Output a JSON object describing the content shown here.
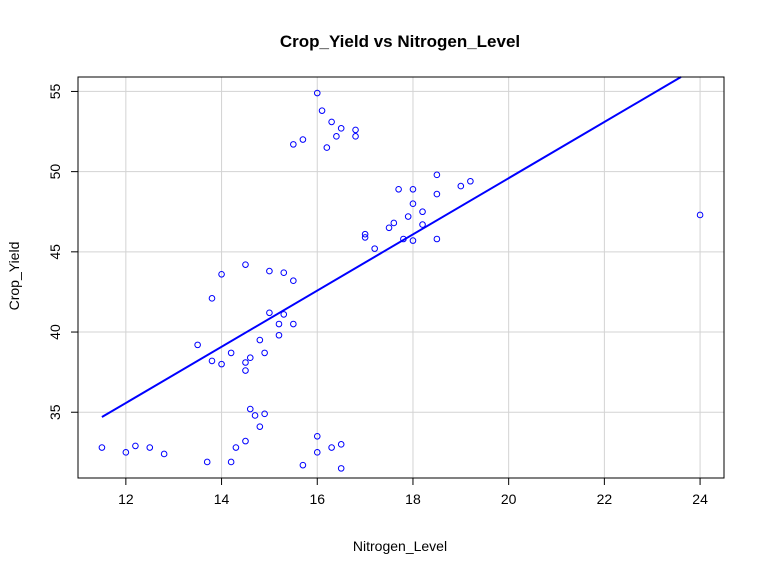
{
  "chart_data": {
    "type": "scatter",
    "title": "Crop_Yield vs Nitrogen_Level",
    "xlabel": "Nitrogen_Level",
    "ylabel": "Crop_Yield",
    "xlim": [
      11.0,
      24.5
    ],
    "ylim": [
      30.9,
      55.9
    ],
    "xticks": [
      12,
      14,
      16,
      18,
      20,
      22,
      24
    ],
    "yticks": [
      35,
      40,
      45,
      50,
      55
    ],
    "grid": true,
    "point_color": "#0000ff",
    "line_color": "#0000ff",
    "points": [
      [
        11.5,
        32.8
      ],
      [
        12.0,
        32.5
      ],
      [
        12.2,
        32.9
      ],
      [
        12.5,
        32.8
      ],
      [
        12.8,
        32.4
      ],
      [
        13.5,
        39.2
      ],
      [
        13.7,
        31.9
      ],
      [
        13.8,
        38.2
      ],
      [
        13.8,
        42.1
      ],
      [
        14.0,
        38.0
      ],
      [
        14.0,
        43.6
      ],
      [
        14.2,
        38.7
      ],
      [
        14.2,
        31.9
      ],
      [
        14.3,
        32.8
      ],
      [
        14.5,
        44.2
      ],
      [
        14.5,
        38.1
      ],
      [
        14.5,
        37.6
      ],
      [
        14.5,
        33.2
      ],
      [
        14.6,
        38.4
      ],
      [
        14.6,
        35.2
      ],
      [
        14.7,
        34.8
      ],
      [
        14.8,
        39.5
      ],
      [
        14.8,
        34.1
      ],
      [
        14.9,
        38.7
      ],
      [
        14.9,
        34.9
      ],
      [
        15.0,
        43.8
      ],
      [
        15.0,
        41.2
      ],
      [
        15.2,
        40.5
      ],
      [
        15.2,
        39.8
      ],
      [
        15.3,
        43.7
      ],
      [
        15.3,
        41.1
      ],
      [
        15.5,
        43.2
      ],
      [
        15.5,
        40.5
      ],
      [
        15.5,
        51.7
      ],
      [
        15.7,
        52.0
      ],
      [
        15.7,
        31.7
      ],
      [
        16.0,
        54.9
      ],
      [
        16.0,
        33.5
      ],
      [
        16.0,
        32.5
      ],
      [
        16.1,
        53.8
      ],
      [
        16.2,
        51.5
      ],
      [
        16.3,
        53.1
      ],
      [
        16.3,
        32.8
      ],
      [
        16.4,
        52.2
      ],
      [
        16.5,
        52.7
      ],
      [
        16.5,
        33.0
      ],
      [
        16.5,
        31.5
      ],
      [
        16.8,
        52.6
      ],
      [
        16.8,
        52.2
      ],
      [
        17.0,
        46.1
      ],
      [
        17.0,
        45.9
      ],
      [
        17.2,
        45.2
      ],
      [
        17.5,
        46.5
      ],
      [
        17.6,
        46.8
      ],
      [
        17.7,
        48.9
      ],
      [
        17.8,
        45.8
      ],
      [
        17.9,
        47.2
      ],
      [
        18.0,
        48.9
      ],
      [
        18.0,
        48.0
      ],
      [
        18.0,
        45.7
      ],
      [
        18.2,
        47.5
      ],
      [
        18.2,
        46.7
      ],
      [
        18.5,
        49.8
      ],
      [
        18.5,
        48.6
      ],
      [
        18.5,
        45.8
      ],
      [
        19.0,
        49.1
      ],
      [
        19.2,
        49.4
      ],
      [
        24.0,
        47.3
      ]
    ],
    "fit_line": {
      "x_start": 11.5,
      "y_start": 34.7,
      "x_end": 23.6,
      "y_end": 55.9
    }
  }
}
